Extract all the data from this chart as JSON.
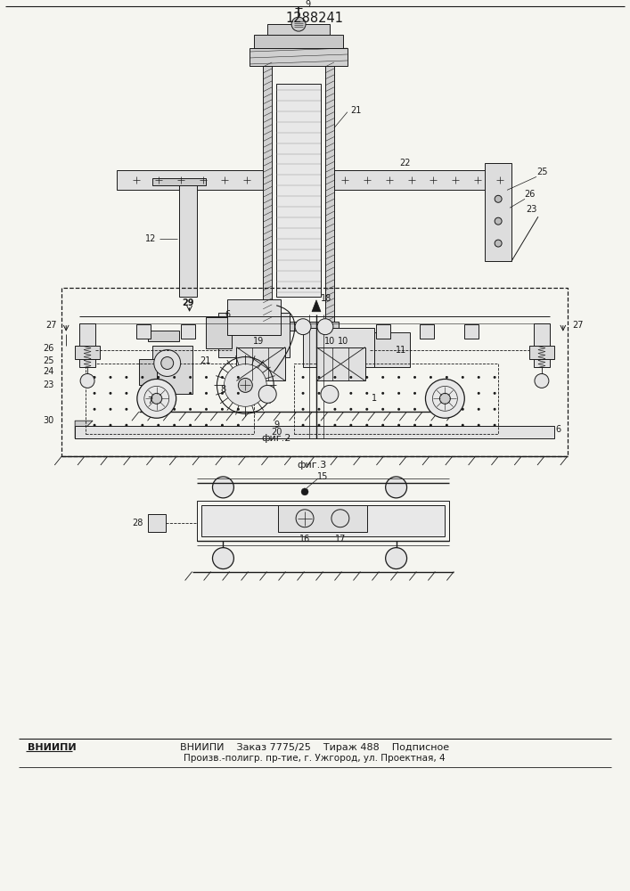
{
  "title": "1288241",
  "fig2_caption": "фиг.2",
  "fig3_caption": "фиг.3",
  "footer_line1": "ВНИИПИ    Заказ 7775/25    Тираж 488    Подписное",
  "footer_line2": "Произв.-полигр. пр-тие, г. Ужгород, ул. Проектная, 4",
  "bg_color": "#f5f5f0",
  "line_color": "#1a1a1a"
}
